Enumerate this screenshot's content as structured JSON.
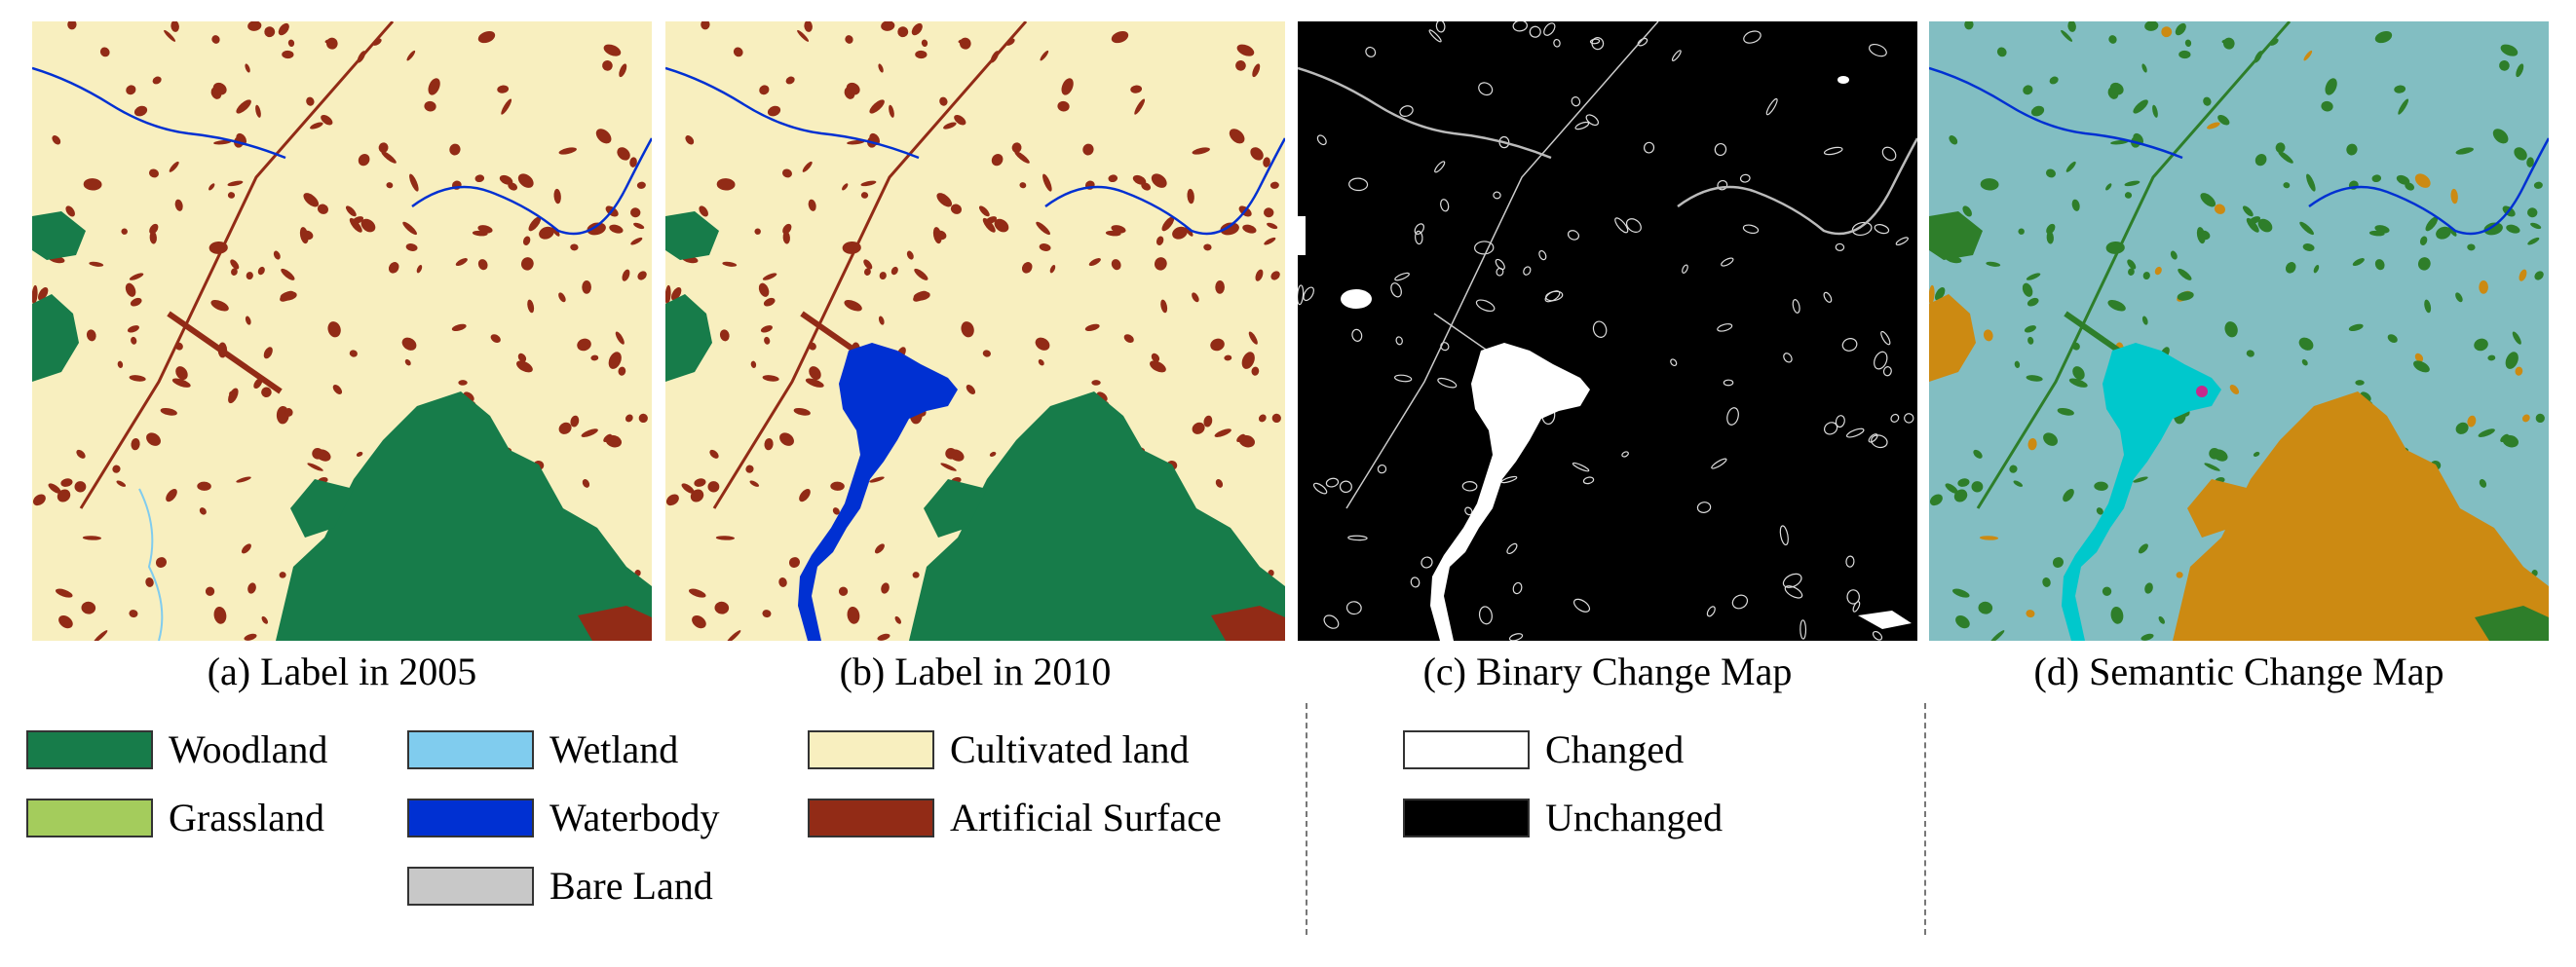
{
  "panels": [
    {
      "id": "a",
      "caption": "(a) Label in 2005"
    },
    {
      "id": "b",
      "caption": "(b) Label in 2010"
    },
    {
      "id": "c",
      "caption": "(c) Binary Change Map"
    },
    {
      "id": "d",
      "caption": "(d) Semantic Change Map"
    }
  ],
  "legend": {
    "land_cover": [
      {
        "label": "Woodland",
        "color": "#177c4a"
      },
      {
        "label": "Grassland",
        "color": "#a4cc5c"
      },
      {
        "label": "Wetland",
        "color": "#80ccee"
      },
      {
        "label": "Waterbody",
        "color": "#0030d2"
      },
      {
        "label": "Bare Land",
        "color": "#c8c8c8"
      },
      {
        "label": "Cultivated land",
        "color": "#f8efbf"
      },
      {
        "label": "Artificial Surface",
        "color": "#922b16"
      }
    ],
    "change": [
      {
        "label": "Changed",
        "color": "#ffffff"
      },
      {
        "label": "Unchanged",
        "color": "#000000"
      }
    ]
  },
  "semantic_colors": {
    "background": "#82bec2",
    "woodland": "#2e7e2a",
    "water_change": "#00c8cc",
    "urban_change": "#cc8a12",
    "minor_change": "#c62a8c"
  }
}
